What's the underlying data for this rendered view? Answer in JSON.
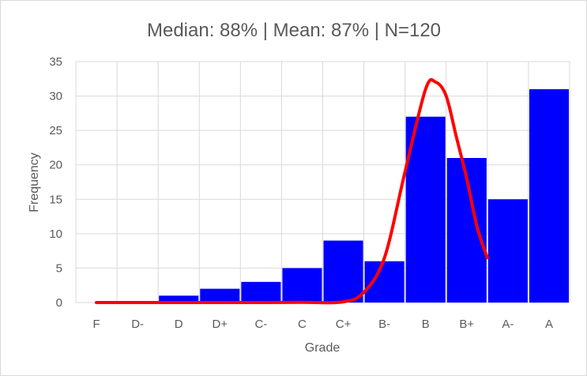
{
  "chart_data": {
    "type": "bar",
    "title": "Median: 88% | Mean: 87% | N=120",
    "xlabel": "Grade",
    "ylabel": "Frequency",
    "categories": [
      "F",
      "D-",
      "D",
      "D+",
      "C-",
      "C",
      "C+",
      "B-",
      "B",
      "B+",
      "A-",
      "A"
    ],
    "values": [
      0,
      0,
      1,
      2,
      3,
      5,
      9,
      6,
      27,
      21,
      15,
      31
    ],
    "ylim": [
      0,
      35
    ],
    "yticks": [
      0,
      5,
      10,
      15,
      20,
      25,
      30,
      35
    ],
    "grid": true,
    "colors": {
      "bars": "#0000ff",
      "curve": "#ff0000",
      "grid": "#d9d9d9",
      "text": "#595959"
    },
    "overlay_line": {
      "type": "line",
      "x_category_index": [
        0,
        1,
        2,
        3,
        4,
        5,
        6,
        6.5,
        7,
        7.5,
        8,
        8.25,
        8.5,
        8.75,
        9,
        9.25,
        9.5
      ],
      "values": [
        0,
        0,
        0,
        0,
        0,
        0.02,
        0.1,
        1.5,
        6.5,
        19,
        31,
        32,
        30,
        24,
        18,
        11,
        6.5
      ]
    }
  }
}
